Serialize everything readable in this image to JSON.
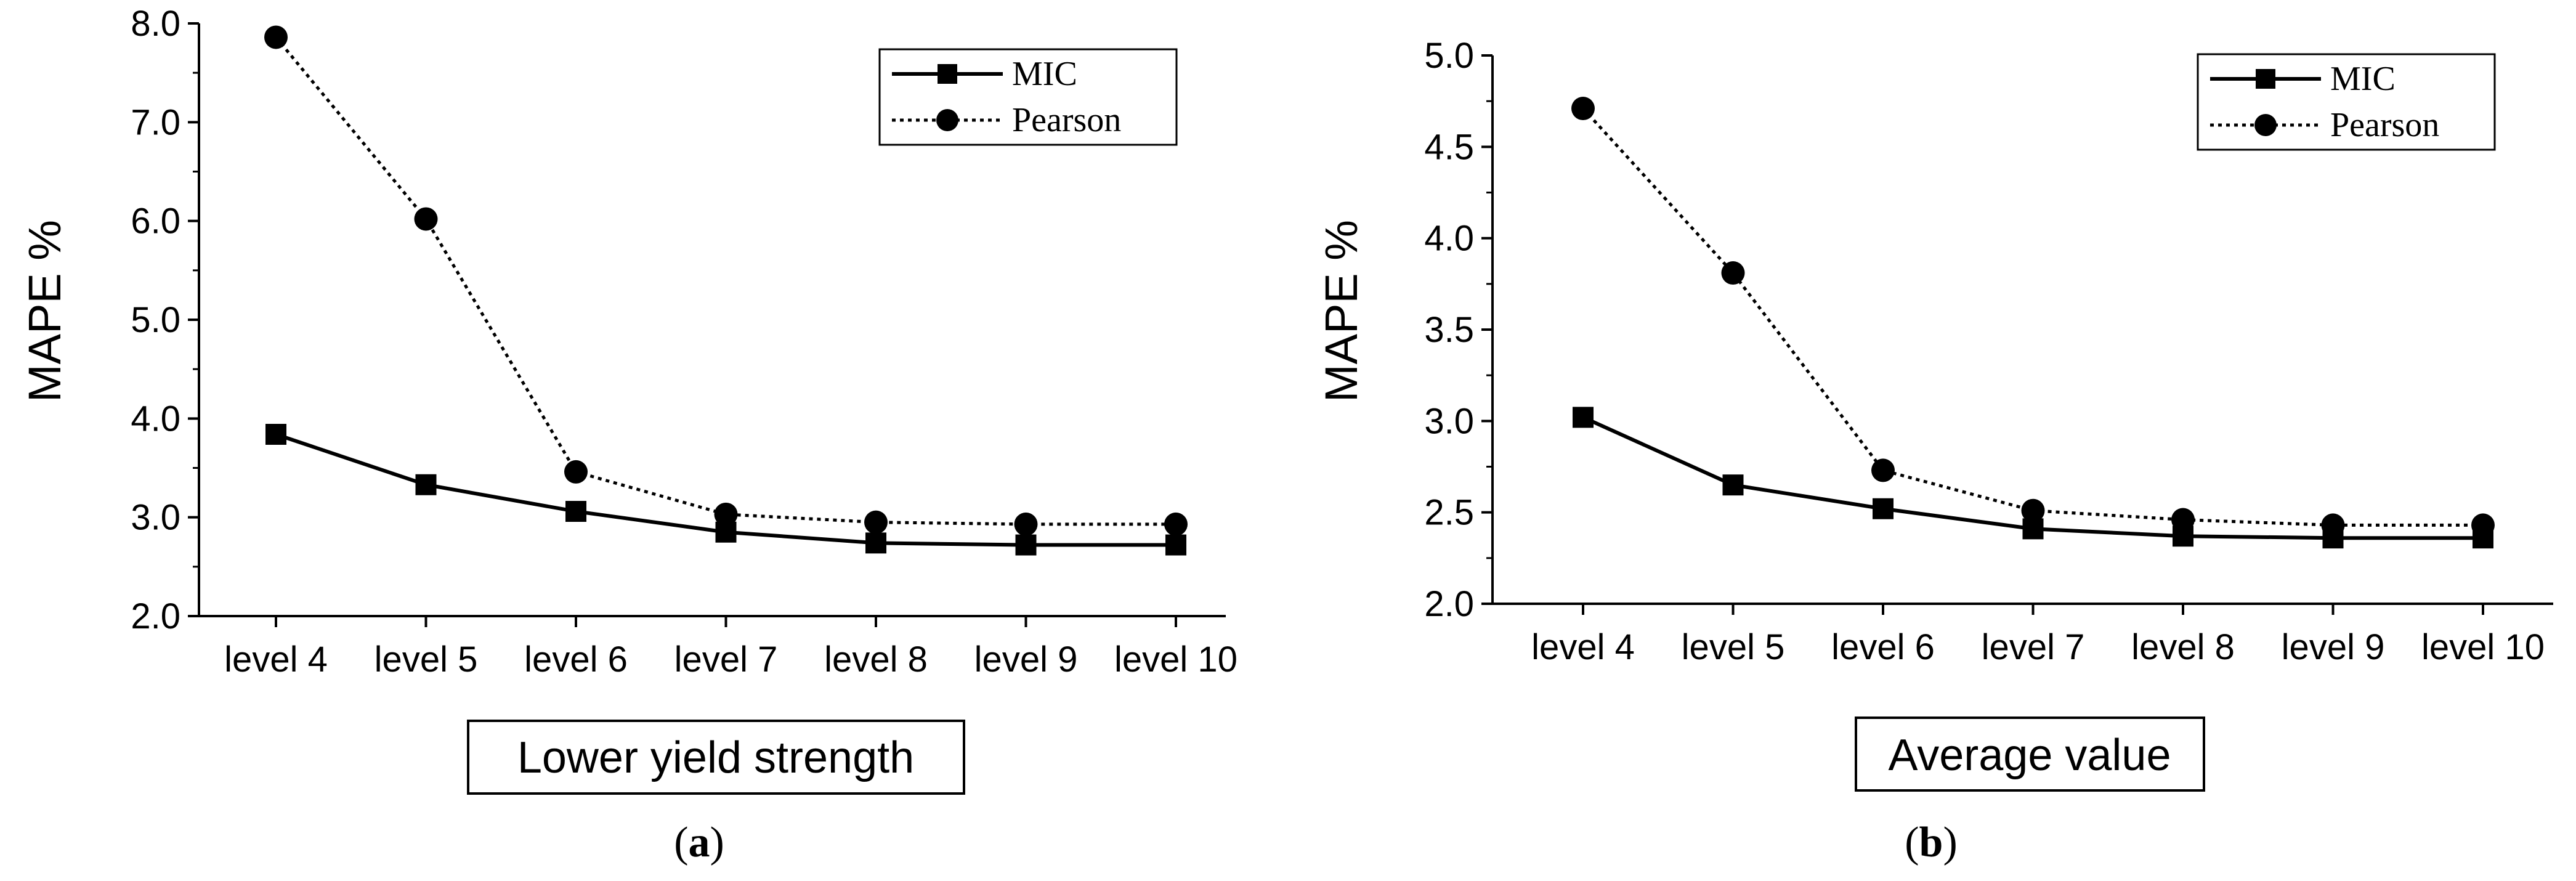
{
  "chart_data": [
    {
      "type": "line",
      "panel": "a",
      "panel_label_open": "(",
      "panel_label_close": ")",
      "title": "Lower yield strength",
      "xlabel": "Lower yield strength",
      "ylabel": "MAPE %",
      "categories": [
        "level 4",
        "level 5",
        "level 6",
        "level 7",
        "level 8",
        "level 9",
        "level 10"
      ],
      "ylim": [
        2.0,
        8.0
      ],
      "yticks": [
        2.0,
        3.0,
        4.0,
        5.0,
        6.0,
        7.0,
        8.0
      ],
      "ytick_labels": [
        "2.0",
        "3.0",
        "4.0",
        "5.0",
        "6.0",
        "7.0",
        "8.0"
      ],
      "legend_position": "top-right",
      "grid": false,
      "series": [
        {
          "name": "MIC",
          "marker": "square",
          "line": "solid",
          "values": [
            3.84,
            3.33,
            3.06,
            2.85,
            2.74,
            2.72,
            2.72
          ]
        },
        {
          "name": "Pearson",
          "marker": "circle",
          "line": "dotted",
          "values": [
            7.86,
            6.02,
            3.46,
            3.03,
            2.95,
            2.93,
            2.93
          ]
        }
      ]
    },
    {
      "type": "line",
      "panel": "b",
      "panel_label_open": "(",
      "panel_label_close": ")",
      "title": "Average value",
      "xlabel": "Average value",
      "ylabel": "MAPE %",
      "categories": [
        "level 4",
        "level 5",
        "level 6",
        "level 7",
        "level 8",
        "level 9",
        "level 10"
      ],
      "ylim": [
        2.0,
        5.0
      ],
      "yticks": [
        2.0,
        2.5,
        3.0,
        3.5,
        4.0,
        4.5,
        5.0
      ],
      "ytick_labels": [
        "2.0",
        "2.5",
        "3.0",
        "3.5",
        "4.0",
        "4.5",
        "5.0"
      ],
      "legend_position": "top-right",
      "grid": false,
      "series": [
        {
          "name": "MIC",
          "marker": "square",
          "line": "solid",
          "values": [
            3.02,
            2.65,
            2.52,
            2.41,
            2.37,
            2.36,
            2.36
          ]
        },
        {
          "name": "Pearson",
          "marker": "circle",
          "line": "dotted",
          "values": [
            4.71,
            3.81,
            2.73,
            2.51,
            2.46,
            2.43,
            2.43
          ]
        }
      ]
    }
  ]
}
